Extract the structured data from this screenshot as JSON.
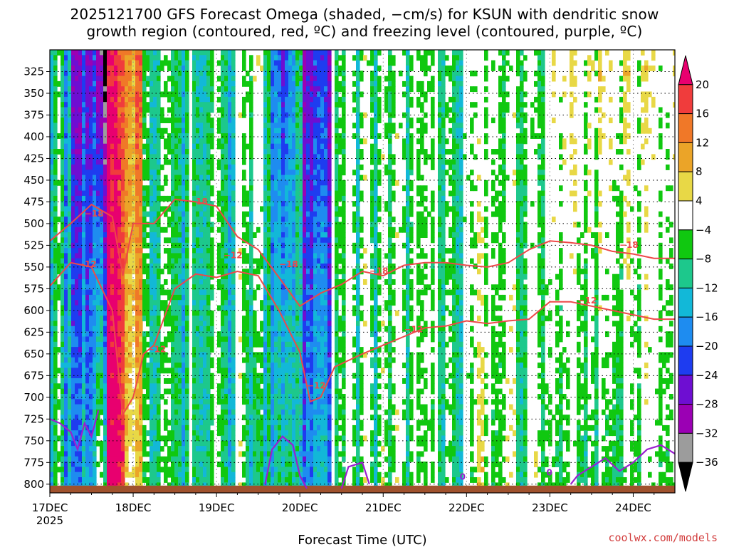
{
  "title": {
    "line1": "2025121700 GFS Forecast Omega (shaded, −cm/s) for KSUN with dendritic snow",
    "line2": "growth region (contoured, red, ºC) and freezing level (contoured, purple, ºC)"
  },
  "credit": "coolwx.com/models",
  "chart_data": {
    "type": "heatmap",
    "xlabel": "Forecast Time (UTC)",
    "ylabel": "",
    "x_ticks": [
      "17DEC",
      "18DEC",
      "19DEC",
      "20DEC",
      "21DEC",
      "22DEC",
      "23DEC",
      "24DEC"
    ],
    "x_year": "2025",
    "x_range": [
      "2025-12-17 00Z",
      "2025-12-24 12Z"
    ],
    "y_ticks": [
      325,
      350,
      375,
      400,
      425,
      450,
      475,
      500,
      525,
      550,
      575,
      600,
      625,
      650,
      675,
      700,
      725,
      750,
      775,
      800
    ],
    "y_range": [
      300,
      810
    ],
    "y_axis": "pressure (inverted)",
    "grid": true,
    "colorbar": {
      "labels": [
        "20",
        "16",
        "12",
        "8",
        "4",
        "−4",
        "−8",
        "−12",
        "−16",
        "−20",
        "−24",
        "−28",
        "−32",
        "−36"
      ],
      "colors": [
        "#e8006f",
        "#f03c3c",
        "#f07828",
        "#eba428",
        "#e8d846",
        "#ffffff",
        "#10c810",
        "#1dc88c",
        "#12b8d8",
        "#1e8cf0",
        "#1e3cf0",
        "#6e0ed2",
        "#9b00b4",
        "#9c9c9c",
        "#000000"
      ]
    },
    "contours": {
      "dgz_red": {
        "color": "#ee4848",
        "labels": [
          "−18",
          "−12"
        ],
        "upper_minus18": [
          [
            0,
            520
          ],
          [
            6,
            500
          ],
          [
            12,
            478
          ],
          [
            18,
            492
          ],
          [
            21,
            560
          ],
          [
            24,
            500
          ],
          [
            30,
            500
          ],
          [
            36,
            472
          ],
          [
            42,
            475
          ],
          [
            48,
            480
          ],
          [
            54,
            515
          ],
          [
            60,
            530
          ],
          [
            66,
            562
          ],
          [
            72,
            595
          ],
          [
            78,
            580
          ],
          [
            84,
            570
          ],
          [
            90,
            555
          ],
          [
            96,
            560
          ],
          [
            102,
            548
          ],
          [
            108,
            545
          ],
          [
            114,
            545
          ],
          [
            120,
            548
          ],
          [
            126,
            550
          ],
          [
            132,
            545
          ],
          [
            138,
            530
          ],
          [
            144,
            520
          ],
          [
            150,
            522
          ],
          [
            156,
            525
          ],
          [
            162,
            532
          ],
          [
            168,
            535
          ],
          [
            174,
            540
          ],
          [
            180,
            540
          ]
        ],
        "lower_minus12": [
          [
            0,
            572
          ],
          [
            6,
            545
          ],
          [
            12,
            550
          ],
          [
            18,
            600
          ],
          [
            21,
            720
          ],
          [
            24,
            700
          ],
          [
            27,
            650
          ],
          [
            30,
            640
          ],
          [
            36,
            575
          ],
          [
            42,
            558
          ],
          [
            48,
            562
          ],
          [
            54,
            555
          ],
          [
            60,
            560
          ],
          [
            66,
            600
          ],
          [
            72,
            648
          ],
          [
            75,
            705
          ],
          [
            78,
            700
          ],
          [
            82,
            665
          ],
          [
            90,
            650
          ],
          [
            96,
            640
          ],
          [
            102,
            630
          ],
          [
            108,
            620
          ],
          [
            114,
            618
          ],
          [
            120,
            612
          ],
          [
            126,
            615
          ],
          [
            132,
            612
          ],
          [
            138,
            610
          ],
          [
            144,
            590
          ],
          [
            150,
            590
          ],
          [
            156,
            595
          ],
          [
            162,
            600
          ],
          [
            168,
            605
          ],
          [
            174,
            610
          ],
          [
            180,
            610
          ]
        ]
      },
      "freezing_purple": {
        "color": "#9b1ed0",
        "labels": [
          "0"
        ],
        "segments": [
          [
            [
              0,
              725
            ],
            [
              3,
              730
            ],
            [
              6,
              740
            ],
            [
              8,
              760
            ],
            [
              10,
              730
            ],
            [
              12,
              745
            ],
            [
              14,
              715
            ]
          ],
          [
            [
              62,
              800
            ],
            [
              64,
              760
            ],
            [
              67,
              745
            ],
            [
              70,
              755
            ],
            [
              72,
              790
            ],
            [
              74,
              805
            ]
          ],
          [
            [
              84,
              805
            ],
            [
              86,
              780
            ],
            [
              90,
              775
            ],
            [
              92,
              800
            ]
          ],
          [
            [
              150,
              800
            ],
            [
              152,
              790
            ],
            [
              156,
              780
            ],
            [
              160,
              770
            ],
            [
              164,
              785
            ],
            [
              168,
              775
            ],
            [
              172,
              760
            ],
            [
              176,
              755
            ],
            [
              180,
              765
            ]
          ]
        ]
      }
    },
    "terrain": {
      "color": "#a0522d",
      "level": 800
    }
  }
}
